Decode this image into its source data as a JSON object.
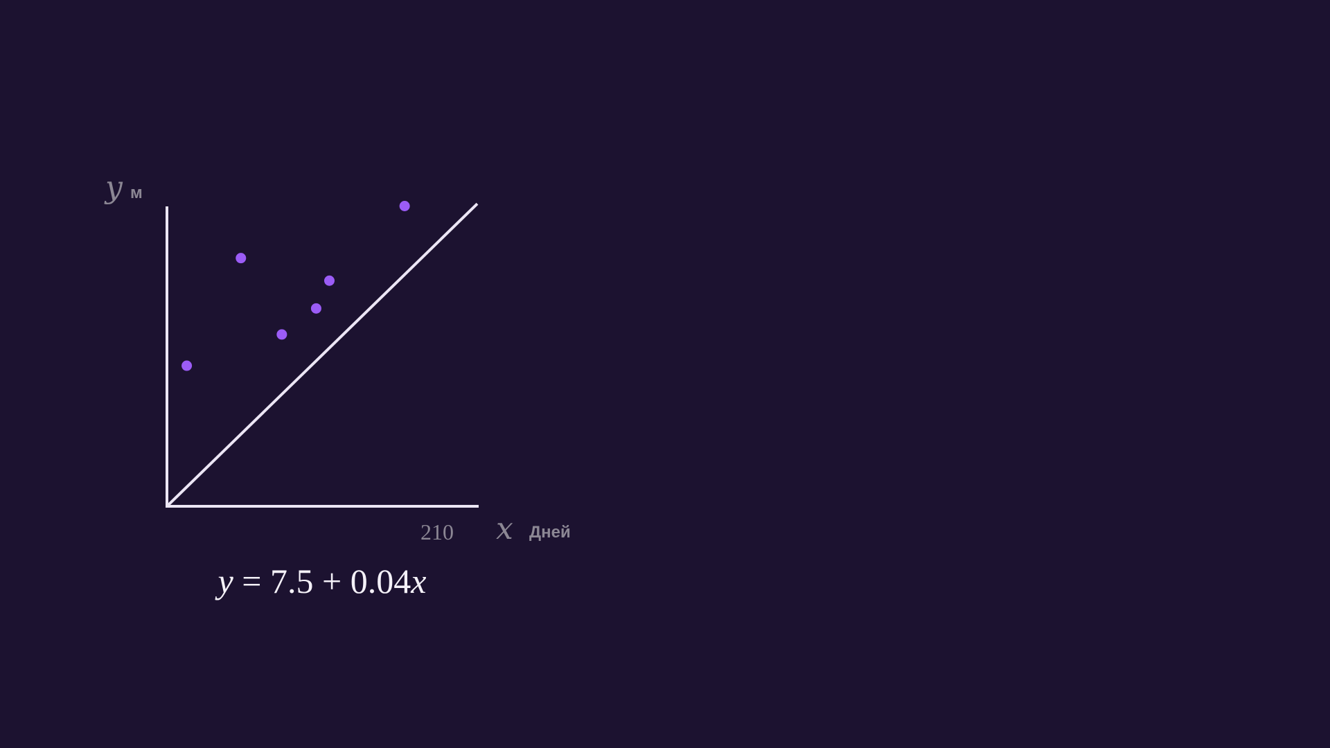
{
  "colors": {
    "background": "#1c1230",
    "axes": "#ece6f5",
    "points": "#9b5cf6",
    "labels": "#8c8794",
    "equation": "#f4f1f8"
  },
  "chart_data": {
    "type": "scatter",
    "xlabel": "x",
    "xunit": "Дней",
    "ylabel": "y",
    "yunit": "м",
    "x_ticks": [
      210
    ],
    "xlim": [
      0,
      235
    ],
    "ylim": [
      0,
      17.2
    ],
    "grid": false,
    "points": [
      {
        "x": 15,
        "y": 8.1
      },
      {
        "x": 56,
        "y": 14.3
      },
      {
        "x": 87,
        "y": 9.9
      },
      {
        "x": 113,
        "y": 11.4
      },
      {
        "x": 123,
        "y": 13.0
      },
      {
        "x": 180,
        "y": 17.3
      }
    ],
    "fit": {
      "intercept": 7.5,
      "slope": 0.04
    },
    "equation": {
      "lhs": "y",
      "eq": " = ",
      "constant": "7.5",
      "plus": " + ",
      "coef": "0.04",
      "var": "x"
    }
  }
}
